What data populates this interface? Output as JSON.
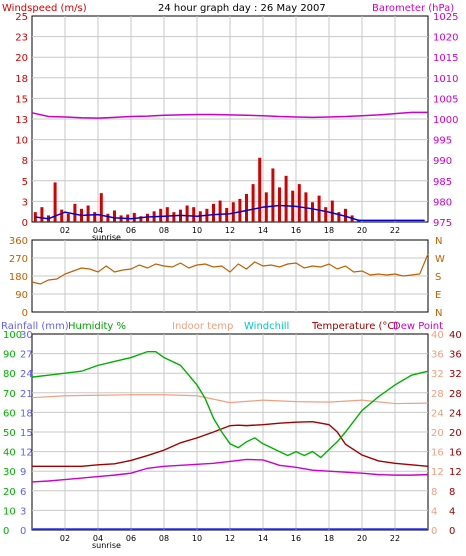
{
  "title": "24 hour graph day : 26 May 2007",
  "sunrise_label": "sunrise",
  "colors": {
    "windspeed": "#d40000",
    "gust": "#d40000",
    "avgwind": "#0000cc",
    "barometer": "#cc00cc",
    "direction": "#c06000",
    "rainfall": "#6060ff",
    "humidity": "#00b000",
    "indoor": "#f0a080",
    "windchill": "#00c8c8",
    "temperature": "#a00000",
    "dewpoint": "#cc00cc",
    "grid": "#c8c8c8"
  },
  "chart_data": [
    {
      "type": "line",
      "title": "24 hour graph day : 26 May 2007",
      "xlabel": "",
      "xlim": [
        0,
        24
      ],
      "x_tick_labels": [
        "02",
        "04",
        "06",
        "08",
        "10",
        "12",
        "14",
        "16",
        "18",
        "20",
        "22"
      ],
      "left_axis": {
        "label": "Windspeed (m/s)",
        "ylim": [
          0,
          25
        ],
        "ticks": [
          "0",
          "3",
          "5",
          "8",
          "10",
          "13",
          "15",
          "18",
          "20",
          "23",
          "25"
        ]
      },
      "right_axis": {
        "label": "Barometer (hPa)",
        "ylim": [
          975,
          1025
        ],
        "ticks": [
          "975",
          "980",
          "985",
          "990",
          "995",
          "1000",
          "1005",
          "1010",
          "1015",
          "1020",
          "1025"
        ]
      },
      "series": [
        {
          "name": "Windspeed (m/s)",
          "axis": "left",
          "style": "bars",
          "x": [
            0.2,
            0.6,
            1.0,
            1.4,
            1.8,
            2.2,
            2.6,
            3.0,
            3.4,
            3.8,
            4.2,
            4.6,
            5.0,
            5.4,
            5.8,
            6.2,
            6.6,
            7.0,
            7.4,
            7.8,
            8.2,
            8.6,
            9.0,
            9.4,
            9.8,
            10.2,
            10.6,
            11.0,
            11.4,
            11.8,
            12.2,
            12.6,
            13.0,
            13.4,
            13.8,
            14.2,
            14.6,
            15.0,
            15.4,
            15.8,
            16.2,
            16.6,
            17.0,
            17.4,
            17.8,
            18.2,
            18.6,
            19.0,
            19.4,
            19.8
          ],
          "y": [
            1.2,
            1.8,
            0.8,
            4.8,
            1.5,
            1.0,
            2.2,
            1.6,
            2.0,
            1.2,
            3.5,
            1.0,
            1.4,
            0.8,
            0.9,
            1.1,
            0.7,
            1.0,
            1.3,
            1.6,
            1.8,
            1.2,
            1.5,
            2.0,
            1.8,
            1.3,
            1.6,
            2.2,
            2.6,
            1.7,
            2.4,
            2.8,
            3.4,
            4.6,
            7.8,
            3.6,
            6.5,
            4.2,
            5.6,
            3.8,
            4.6,
            3.6,
            2.4,
            3.2,
            1.8,
            2.6,
            1.2,
            1.6,
            0.8,
            0.3
          ]
        },
        {
          "name": "Average wind",
          "axis": "left",
          "style": "line",
          "x": [
            0.2,
            1.0,
            2.0,
            3.0,
            4.0,
            5.0,
            6.0,
            7.0,
            8.0,
            9.0,
            10.0,
            11.0,
            12.0,
            13.0,
            14.0,
            15.0,
            16.0,
            17.0,
            18.0,
            19.0,
            19.8,
            23.8
          ],
          "y": [
            0.6,
            0.4,
            1.2,
            0.8,
            0.9,
            0.5,
            0.4,
            0.6,
            0.7,
            0.8,
            0.7,
            0.9,
            1.0,
            1.4,
            1.8,
            2.0,
            1.9,
            1.6,
            1.2,
            0.7,
            0.2,
            0.2
          ]
        },
        {
          "name": "Barometer (hPa)",
          "axis": "right",
          "style": "line",
          "x": [
            0,
            1,
            2,
            3,
            4,
            5,
            6,
            7,
            8,
            9,
            10,
            11,
            12,
            13,
            14,
            15,
            16,
            17,
            18,
            19,
            20,
            21,
            22,
            23,
            24
          ],
          "y": [
            1001.5,
            1000.6,
            1000.5,
            1000.3,
            1000.2,
            1000.4,
            1000.6,
            1000.7,
            1000.9,
            1001.0,
            1001.1,
            1001.1,
            1001.0,
            1000.9,
            1000.8,
            1000.6,
            1000.5,
            1000.4,
            1000.5,
            1000.6,
            1000.8,
            1001.0,
            1001.3,
            1001.6,
            1001.6
          ]
        }
      ]
    },
    {
      "type": "line",
      "xlim": [
        0,
        24
      ],
      "left_axis": {
        "label": "",
        "ylim": [
          0,
          360
        ],
        "ticks": [
          "0",
          "90",
          "180",
          "270",
          "360"
        ]
      },
      "right_axis": {
        "label": "",
        "ticks": [
          "N",
          "E",
          "S",
          "W",
          "N"
        ]
      },
      "series": [
        {
          "name": "Wind direction",
          "axis": "left",
          "x": [
            0,
            0.5,
            1,
            1.5,
            2,
            2.5,
            3,
            3.5,
            4,
            4.5,
            5,
            5.5,
            6,
            6.5,
            7,
            7.5,
            8,
            8.5,
            9,
            9.5,
            10,
            10.5,
            11,
            11.5,
            12,
            12.5,
            13,
            13.5,
            14,
            14.5,
            15,
            15.5,
            16,
            16.5,
            17,
            17.5,
            18,
            18.5,
            19,
            19.5,
            20,
            20.5,
            21,
            21.5,
            22,
            22.5,
            23,
            23.5,
            24
          ],
          "y": [
            150,
            140,
            160,
            165,
            190,
            205,
            220,
            215,
            200,
            230,
            200,
            210,
            215,
            235,
            220,
            240,
            230,
            225,
            245,
            220,
            235,
            240,
            225,
            230,
            200,
            240,
            215,
            250,
            230,
            235,
            225,
            240,
            245,
            220,
            230,
            225,
            240,
            215,
            230,
            200,
            205,
            185,
            190,
            185,
            190,
            180,
            185,
            190,
            290
          ]
        }
      ]
    },
    {
      "type": "line",
      "xlim": [
        0,
        24
      ],
      "axes": [
        {
          "label": "Rainfall (mm)",
          "ylim": [
            0,
            30
          ],
          "ticks": [
            "0",
            "3",
            "6",
            "9",
            "12",
            "15",
            "18",
            "21",
            "24",
            "27",
            "30"
          ]
        },
        {
          "label": "Humidity %",
          "ylim": [
            0,
            100
          ],
          "ticks": [
            "0",
            "10",
            "20",
            "30",
            "40",
            "50",
            "60",
            "70",
            "80",
            "90",
            "100"
          ]
        },
        {
          "label": "Indoor temp",
          "ylim": [
            0,
            40
          ],
          "ticks": [
            "0",
            "4",
            "8",
            "12",
            "16",
            "20",
            "24",
            "28",
            "32",
            "36",
            "40"
          ]
        },
        {
          "label": "Windchill",
          "ylim": [
            0,
            40
          ]
        },
        {
          "label": "Temperature (°C)",
          "ylim": [
            0,
            40
          ]
        },
        {
          "label": "Dew Point",
          "ylim": [
            0,
            40
          ],
          "ticks": [
            "0",
            "4",
            "8",
            "12",
            "16",
            "20",
            "24",
            "28",
            "32",
            "36",
            "40"
          ]
        }
      ],
      "series": [
        {
          "name": "Rainfall (mm)",
          "axis": "Rainfall (mm)",
          "x": [
            0,
            24
          ],
          "y": [
            0.2,
            0.2
          ]
        },
        {
          "name": "Humidity %",
          "axis": "Humidity %",
          "x": [
            0,
            1,
            2,
            3,
            4,
            5,
            6,
            7,
            7.5,
            8,
            9,
            10,
            10.5,
            11,
            11.5,
            12,
            12.5,
            13,
            13.5,
            14,
            14.5,
            15,
            15.5,
            16,
            16.5,
            17,
            17.5,
            18,
            18.5,
            19,
            20,
            21,
            22,
            23,
            24
          ],
          "y": [
            78,
            79,
            80,
            81,
            84,
            86,
            88,
            91,
            91,
            88,
            84,
            74,
            67,
            57,
            50,
            44,
            42,
            45,
            47,
            44,
            42,
            40,
            38,
            40,
            38,
            40,
            37,
            41,
            45,
            50,
            61,
            68,
            74,
            79,
            81
          ]
        },
        {
          "name": "Indoor temp",
          "axis": "Indoor temp",
          "x": [
            0,
            2,
            4,
            6,
            8,
            10,
            12,
            14,
            16,
            18,
            20,
            22,
            24
          ],
          "y": [
            27,
            27.4,
            27.5,
            27.6,
            27.6,
            27.4,
            26.0,
            26.5,
            26.2,
            26.1,
            26.5,
            25.8,
            25.9
          ]
        },
        {
          "name": "Temperature (°C)",
          "axis": "Temperature (°C)",
          "x": [
            0,
            1,
            2,
            3,
            4,
            5,
            6,
            7,
            8,
            9,
            10,
            11,
            12,
            12.5,
            13,
            14,
            15,
            16,
            17,
            18,
            18.5,
            19,
            20,
            21,
            22,
            23,
            24
          ],
          "y": [
            13.0,
            13.0,
            13.0,
            13.0,
            13.3,
            13.5,
            14.2,
            15.2,
            16.3,
            17.8,
            18.8,
            20.0,
            21.3,
            21.4,
            21.3,
            21.5,
            21.8,
            22.0,
            22.1,
            21.5,
            20.0,
            17.5,
            15.3,
            14.1,
            13.6,
            13.3,
            13.0
          ]
        },
        {
          "name": "Dew Point",
          "axis": "Dew Point",
          "x": [
            0,
            1,
            2,
            3,
            4,
            5,
            6,
            7,
            8,
            9,
            10,
            11,
            12,
            13,
            14,
            15,
            16,
            17,
            18,
            19,
            20,
            21,
            22,
            23,
            24
          ],
          "y": [
            9.8,
            10.0,
            10.3,
            10.6,
            10.9,
            11.2,
            11.6,
            12.6,
            13.0,
            13.2,
            13.4,
            13.6,
            14.0,
            14.4,
            14.3,
            13.2,
            12.8,
            12.2,
            12.0,
            11.8,
            11.6,
            11.3,
            11.2,
            11.2,
            11.3
          ]
        }
      ]
    }
  ]
}
